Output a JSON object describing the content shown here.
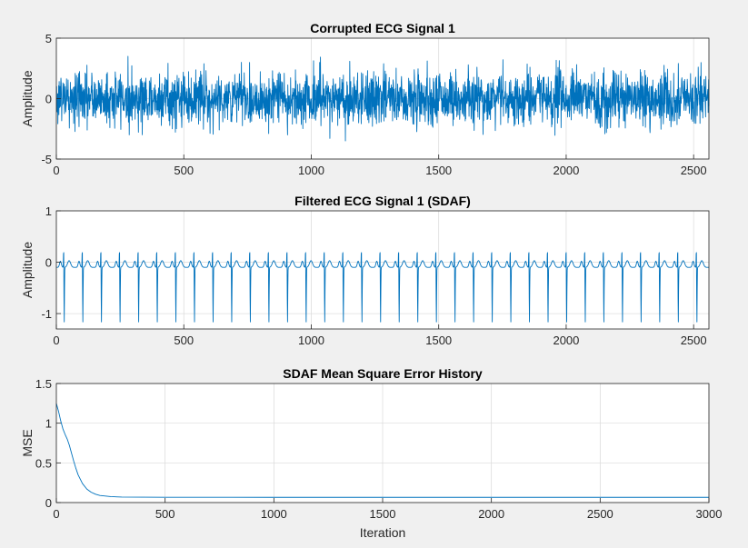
{
  "chart_data": [
    {
      "type": "line",
      "title": "Corrupted ECG Signal 1",
      "xlabel": "",
      "ylabel": "Amplitude",
      "xlim": [
        0,
        2560
      ],
      "ylim": [
        -5,
        5
      ],
      "xticks": [
        0,
        500,
        1000,
        1500,
        2000,
        2500
      ],
      "yticks": [
        -5,
        0,
        5
      ],
      "grid": true,
      "line_color": "#0072BD",
      "series": [
        {
          "signal": "noisy-ecg",
          "n": 2560,
          "x_start": 1,
          "x_step": 1,
          "approx_range": [
            -3.5,
            4.0
          ]
        }
      ]
    },
    {
      "type": "line",
      "title": "Filtered ECG Signal 1 (SDAF)",
      "xlabel": "",
      "ylabel": "Amplitude",
      "xlim": [
        0,
        2560
      ],
      "ylim": [
        -1.3,
        1
      ],
      "xticks": [
        0,
        500,
        1000,
        1500,
        2000,
        2500
      ],
      "yticks": [
        -1,
        0,
        1
      ],
      "grid": true,
      "line_color": "#0072BD",
      "series": [
        {
          "signal": "ecg",
          "n": 2560,
          "x_start": 1,
          "x_step": 1,
          "beat_period_samples": 73,
          "first_beat_x": 30,
          "baseline": -0.1,
          "r_peak": 0.35,
          "s_trough": -1.2
        }
      ]
    },
    {
      "type": "line",
      "title": "SDAF Mean Square Error History",
      "xlabel": "Iteration",
      "ylabel": "MSE",
      "xlim": [
        0,
        3000
      ],
      "ylim": [
        0,
        1.5
      ],
      "xticks": [
        0,
        500,
        1000,
        1500,
        2000,
        2500,
        3000
      ],
      "yticks": [
        0,
        0.5,
        1,
        1.5
      ],
      "grid": true,
      "line_color": "#0072BD",
      "series": [
        {
          "x": [
            0,
            10,
            20,
            30,
            40,
            50,
            60,
            70,
            80,
            90,
            100,
            120,
            140,
            160,
            180,
            200,
            250,
            300,
            400,
            500,
            1000,
            1500,
            2000,
            2500,
            3000
          ],
          "y": [
            1.25,
            1.15,
            1.03,
            0.93,
            0.86,
            0.8,
            0.72,
            0.62,
            0.52,
            0.43,
            0.35,
            0.24,
            0.17,
            0.13,
            0.105,
            0.09,
            0.075,
            0.07,
            0.068,
            0.067,
            0.066,
            0.066,
            0.066,
            0.066,
            0.066
          ]
        }
      ]
    }
  ]
}
